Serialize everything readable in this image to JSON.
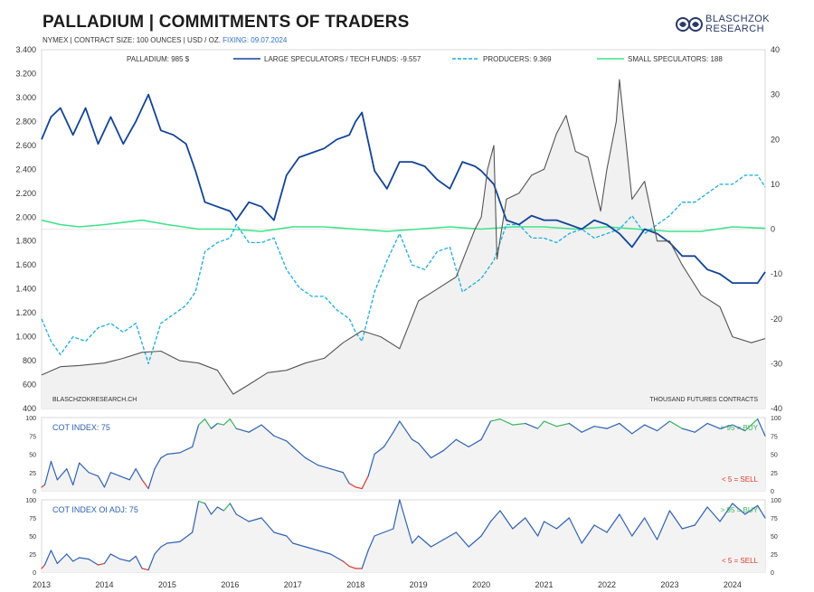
{
  "header": {
    "title": "PALLADIUM | COMMITMENTS OF TRADERS",
    "subtitle": "NYMEX | CONTRACT SIZE: 100 OUNCES | USD / OZ.",
    "fixing": "FIXING: 09.07.2024",
    "logo_line1": "BLASCHZOK",
    "logo_line2": "RESEARCH"
  },
  "chart_data": [
    {
      "type": "line",
      "panel": "main",
      "legend": [
        {
          "label": "PALLADIUM: 985 $",
          "color": "#555555",
          "style": "solid"
        },
        {
          "label": "LARGE SPECULATORS / TECH FUNDS: -9.557",
          "color": "#12449a",
          "style": "solid"
        },
        {
          "label": "PRODUCERS: 9.369",
          "color": "#1aaee0",
          "style": "dashed"
        },
        {
          "label": "SMALL SPECULATORS: 188",
          "color": "#3ee38a",
          "style": "solid"
        }
      ],
      "y_left": {
        "min": 400,
        "max": 3400,
        "ticks": [
          "400",
          "600",
          "800",
          "1.000",
          "1.200",
          "1.400",
          "1.600",
          "1.800",
          "2.000",
          "2.200",
          "2.400",
          "2.600",
          "2.800",
          "3.000",
          "3.200",
          "3.400"
        ]
      },
      "y_right": {
        "min": -40,
        "max": 40,
        "ticks": [
          "-40",
          "-30",
          "-20",
          "-10",
          "0",
          "10",
          "20",
          "30",
          "40"
        ]
      },
      "x_ticks": [
        "2013",
        "2014",
        "2015",
        "2016",
        "2017",
        "2018",
        "2019",
        "2020",
        "2021",
        "2022",
        "2023",
        "2024"
      ],
      "source_label": "BLASCHZOKRESEARCH.CH",
      "unit_label": "THOUSAND  FUTURES CONTRACTS",
      "series": [
        {
          "name": "PALLADIUM",
          "axis": "left",
          "x": [
            2013.0,
            2013.3,
            2013.6,
            2014.0,
            2014.3,
            2014.6,
            2014.9,
            2015.2,
            2015.5,
            2015.8,
            2016.05,
            2016.3,
            2016.6,
            2016.9,
            2017.2,
            2017.5,
            2017.8,
            2018.1,
            2018.4,
            2018.7,
            2019.0,
            2019.3,
            2019.6,
            2019.9,
            2020.0,
            2020.1,
            2020.2,
            2020.25,
            2020.4,
            2020.6,
            2020.8,
            2021.0,
            2021.2,
            2021.35,
            2021.5,
            2021.7,
            2021.9,
            2022.0,
            2022.15,
            2022.2,
            2022.4,
            2022.6,
            2022.8,
            2023.0,
            2023.2,
            2023.5,
            2023.8,
            2024.0,
            2024.3,
            2024.52
          ],
          "values": [
            680,
            750,
            760,
            780,
            820,
            870,
            880,
            800,
            780,
            720,
            520,
            600,
            700,
            720,
            780,
            820,
            950,
            1050,
            1000,
            900,
            1300,
            1400,
            1500,
            1900,
            2000,
            2400,
            2600,
            1650,
            2150,
            2200,
            2350,
            2400,
            2700,
            2850,
            2550,
            2500,
            2050,
            2400,
            2800,
            3150,
            2150,
            2300,
            1800,
            1800,
            1600,
            1350,
            1250,
            1000,
            950,
            985
          ]
        },
        {
          "name": "LARGE SPECULATORS / TECH FUNDS",
          "axis": "right",
          "x": [
            2013.0,
            2013.15,
            2013.3,
            2013.5,
            2013.7,
            2013.9,
            2014.1,
            2014.3,
            2014.5,
            2014.7,
            2014.9,
            2015.1,
            2015.3,
            2015.45,
            2015.6,
            2015.8,
            2016.0,
            2016.1,
            2016.3,
            2016.5,
            2016.7,
            2016.9,
            2017.1,
            2017.3,
            2017.5,
            2017.7,
            2017.9,
            2018.0,
            2018.1,
            2018.3,
            2018.5,
            2018.7,
            2018.9,
            2019.1,
            2019.3,
            2019.5,
            2019.7,
            2019.9,
            2020.0,
            2020.2,
            2020.4,
            2020.6,
            2020.8,
            2021.0,
            2021.2,
            2021.4,
            2021.6,
            2021.8,
            2022.0,
            2022.2,
            2022.4,
            2022.6,
            2022.8,
            2023.0,
            2023.2,
            2023.4,
            2023.6,
            2023.8,
            2024.0,
            2024.2,
            2024.4,
            2024.52
          ],
          "values": [
            20,
            25,
            27,
            21,
            27,
            19,
            25,
            19,
            24,
            30,
            22,
            21,
            19,
            13,
            6,
            5,
            4,
            2,
            6,
            5,
            2,
            12,
            16,
            17,
            18,
            20,
            21,
            24,
            26,
            13,
            9,
            15,
            15,
            14,
            11,
            9,
            15,
            14,
            13,
            10,
            2,
            1,
            3,
            2,
            2,
            1,
            0,
            2,
            1,
            -1,
            -4,
            0,
            -1,
            -3,
            -6,
            -6,
            -9,
            -10,
            -12,
            -12,
            -12,
            -9.557
          ]
        },
        {
          "name": "PRODUCERS",
          "axis": "right",
          "x": [
            2013.0,
            2013.15,
            2013.3,
            2013.5,
            2013.7,
            2013.9,
            2014.1,
            2014.3,
            2014.5,
            2014.7,
            2014.9,
            2015.1,
            2015.3,
            2015.45,
            2015.6,
            2015.8,
            2016.0,
            2016.1,
            2016.3,
            2016.5,
            2016.7,
            2016.9,
            2017.1,
            2017.3,
            2017.5,
            2017.7,
            2017.9,
            2018.0,
            2018.1,
            2018.3,
            2018.5,
            2018.7,
            2018.9,
            2019.1,
            2019.3,
            2019.5,
            2019.7,
            2019.9,
            2020.0,
            2020.2,
            2020.4,
            2020.6,
            2020.8,
            2021.0,
            2021.2,
            2021.4,
            2021.6,
            2021.8,
            2022.0,
            2022.2,
            2022.4,
            2022.6,
            2022.8,
            2023.0,
            2023.2,
            2023.4,
            2023.6,
            2023.8,
            2024.0,
            2024.2,
            2024.4,
            2024.52
          ],
          "values": [
            -20,
            -25,
            -28,
            -24,
            -25,
            -22,
            -21,
            -23,
            -21,
            -30,
            -21,
            -19,
            -17,
            -14,
            -5,
            -3,
            -2,
            1,
            -3,
            -3,
            -2,
            -9,
            -13,
            -15,
            -15,
            -18,
            -20,
            -23,
            -25,
            -14,
            -7,
            -1,
            -8,
            -9,
            -5,
            -4,
            -14,
            -12,
            -11,
            -7,
            1,
            1,
            -2,
            -2,
            -3,
            -1,
            0,
            -2,
            -1,
            0,
            3,
            -1,
            1,
            3,
            6,
            6,
            8,
            10,
            10,
            12,
            12,
            9.369
          ]
        },
        {
          "name": "SMALL SPECULATORS",
          "axis": "right",
          "x": [
            2013.0,
            2013.3,
            2013.6,
            2014.0,
            2014.3,
            2014.6,
            2015.0,
            2015.5,
            2016.0,
            2016.5,
            2017.0,
            2017.5,
            2018.0,
            2018.5,
            2019.0,
            2019.5,
            2020.0,
            2020.5,
            2021.0,
            2021.5,
            2022.0,
            2022.5,
            2023.0,
            2023.5,
            2024.0,
            2024.52
          ],
          "values": [
            2,
            1,
            0.5,
            1,
            1.5,
            2,
            1,
            0,
            0,
            -0.5,
            0.5,
            0.5,
            0,
            -0.5,
            0,
            0.5,
            0,
            0.5,
            0.5,
            0,
            0.5,
            0,
            -0.5,
            -0.5,
            0.5,
            0.188
          ]
        }
      ]
    },
    {
      "type": "line",
      "panel": "cot_index",
      "label": "COT INDEX: 75",
      "buy_label": "> 95 = BUY",
      "sell_label": "< 5 = SELL",
      "y_ticks": [
        "0",
        "25",
        "50",
        "75",
        "100"
      ],
      "x": [
        2013.0,
        2013.05,
        2013.15,
        2013.25,
        2013.4,
        2013.5,
        2013.6,
        2013.75,
        2013.9,
        2014.0,
        2014.1,
        2014.25,
        2014.4,
        2014.5,
        2014.6,
        2014.7,
        2014.8,
        2014.9,
        2015.0,
        2015.2,
        2015.4,
        2015.5,
        2015.6,
        2015.7,
        2015.8,
        2015.9,
        2016.0,
        2016.1,
        2016.3,
        2016.5,
        2016.7,
        2016.9,
        2017.0,
        2017.2,
        2017.4,
        2017.6,
        2017.8,
        2017.9,
        2018.0,
        2018.1,
        2018.2,
        2018.3,
        2018.45,
        2018.6,
        2018.7,
        2018.9,
        2019.0,
        2019.2,
        2019.4,
        2019.6,
        2019.8,
        2020.0,
        2020.15,
        2020.3,
        2020.5,
        2020.7,
        2020.9,
        2021.0,
        2021.2,
        2021.4,
        2021.6,
        2021.8,
        2022.0,
        2022.2,
        2022.4,
        2022.6,
        2022.8,
        2023.0,
        2023.2,
        2023.4,
        2023.6,
        2023.8,
        2024.0,
        2024.2,
        2024.4,
        2024.52
      ],
      "values": [
        5,
        8,
        40,
        15,
        30,
        8,
        38,
        25,
        20,
        5,
        25,
        20,
        15,
        30,
        15,
        3,
        30,
        45,
        50,
        52,
        60,
        90,
        98,
        85,
        92,
        90,
        98,
        85,
        80,
        90,
        75,
        68,
        60,
        45,
        35,
        30,
        25,
        10,
        5,
        3,
        20,
        50,
        60,
        80,
        95,
        70,
        65,
        45,
        55,
        70,
        60,
        70,
        95,
        98,
        90,
        92,
        85,
        95,
        88,
        92,
        80,
        88,
        85,
        92,
        78,
        90,
        82,
        95,
        85,
        80,
        92,
        85,
        90,
        82,
        98,
        75
      ]
    },
    {
      "type": "line",
      "panel": "cot_index_oi_adj",
      "label": "COT INDEX OI ADJ: 75",
      "buy_label": "> 95 = BUY",
      "sell_label": "< 5 = SELL",
      "y_ticks": [
        "0",
        "25",
        "50",
        "75",
        "100"
      ],
      "x": [
        2013.0,
        2013.05,
        2013.15,
        2013.25,
        2013.4,
        2013.5,
        2013.6,
        2013.75,
        2013.9,
        2014.0,
        2014.1,
        2014.25,
        2014.4,
        2014.5,
        2014.6,
        2014.7,
        2014.8,
        2014.9,
        2015.0,
        2015.2,
        2015.4,
        2015.5,
        2015.6,
        2015.7,
        2015.8,
        2015.9,
        2016.0,
        2016.1,
        2016.3,
        2016.5,
        2016.7,
        2016.9,
        2017.0,
        2017.2,
        2017.4,
        2017.6,
        2017.8,
        2017.9,
        2018.0,
        2018.1,
        2018.2,
        2018.3,
        2018.45,
        2018.6,
        2018.7,
        2018.9,
        2019.0,
        2019.2,
        2019.4,
        2019.6,
        2019.8,
        2020.0,
        2020.15,
        2020.3,
        2020.5,
        2020.7,
        2020.9,
        2021.0,
        2021.2,
        2021.4,
        2021.6,
        2021.8,
        2022.0,
        2022.2,
        2022.4,
        2022.6,
        2022.8,
        2023.0,
        2023.2,
        2023.4,
        2023.6,
        2023.8,
        2024.0,
        2024.2,
        2024.4,
        2024.52
      ],
      "values": [
        5,
        10,
        30,
        12,
        25,
        15,
        20,
        18,
        10,
        12,
        25,
        18,
        15,
        22,
        5,
        3,
        25,
        35,
        40,
        42,
        55,
        98,
        95,
        80,
        90,
        85,
        95,
        80,
        70,
        75,
        55,
        50,
        40,
        35,
        30,
        25,
        15,
        8,
        5,
        5,
        30,
        50,
        55,
        60,
        100,
        40,
        50,
        35,
        45,
        55,
        35,
        50,
        70,
        85,
        60,
        75,
        50,
        70,
        60,
        75,
        40,
        65,
        55,
        80,
        50,
        75,
        45,
        85,
        60,
        65,
        90,
        70,
        95,
        80,
        92,
        75
      ]
    }
  ]
}
